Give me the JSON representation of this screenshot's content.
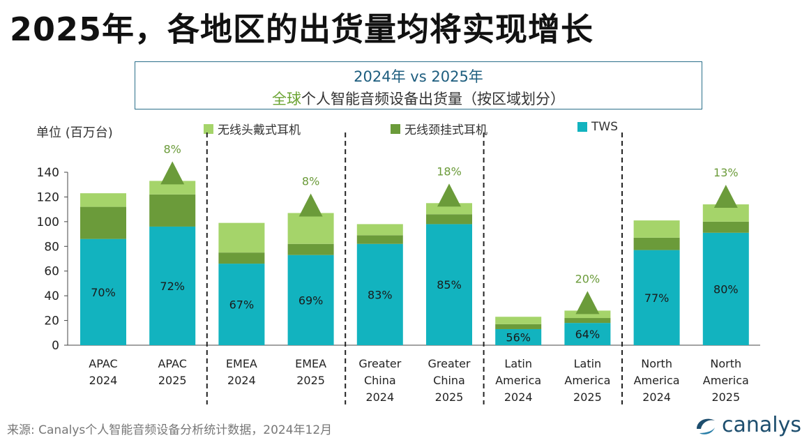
{
  "title": "2025年，各地区的出货量均将实现增长",
  "subtitle": {
    "line1_a": "2024年",
    "line1_b": " vs ",
    "line1_c": "2025年",
    "line2_a": "全球",
    "line2_b": "个人智能音频设备出货量（按区域划分）"
  },
  "colors": {
    "tws": "#12b3bf",
    "neckband": "#6b9b3a",
    "headphones": "#a5d46a",
    "triangle": "#6b9b3a",
    "growth_text": "#6b9b3a"
  },
  "chart_data": {
    "type": "bar",
    "stacked": true,
    "ylabel": "单位 (百万台)",
    "ylim": [
      0,
      140
    ],
    "yticks": [
      0,
      20,
      40,
      60,
      80,
      100,
      120,
      140
    ],
    "legend": [
      "无线头戴式耳机",
      "无线颈挂式耳机",
      "TWS"
    ],
    "categories": [
      [
        "APAC",
        "2024"
      ],
      [
        "APAC",
        "2025"
      ],
      [
        "EMEA",
        "2024"
      ],
      [
        "EMEA",
        "2025"
      ],
      [
        "Greater",
        "China",
        "2024"
      ],
      [
        "Greater",
        "China",
        "2025"
      ],
      [
        "Latin",
        "America",
        "2024"
      ],
      [
        "Latin",
        "America",
        "2025"
      ],
      [
        "North",
        "America",
        "2024"
      ],
      [
        "North",
        "America",
        "2025"
      ]
    ],
    "series": [
      {
        "name": "TWS",
        "values": [
          86,
          96,
          66,
          73,
          82,
          98,
          13,
          18,
          77,
          91
        ]
      },
      {
        "name": "无线颈挂式耳机",
        "values": [
          26,
          26,
          9,
          9,
          7,
          8,
          4,
          4,
          10,
          9
        ]
      },
      {
        "name": "无线头戴式耳机",
        "values": [
          11,
          11,
          24,
          25,
          9,
          9,
          6,
          6,
          14,
          14
        ]
      }
    ],
    "tws_share_labels": [
      "70%",
      "72%",
      "67%",
      "69%",
      "83%",
      "85%",
      "56%",
      "64%",
      "77%",
      "80%"
    ],
    "growth": [
      {
        "index": 1,
        "label": "8%"
      },
      {
        "index": 3,
        "label": "8%"
      },
      {
        "index": 5,
        "label": "18%"
      },
      {
        "index": 7,
        "label": "20%"
      },
      {
        "index": 9,
        "label": "13%"
      }
    ],
    "region_dividers_after": [
      1,
      3,
      5,
      7
    ]
  },
  "source": "来源: Canalys个人智能音频设备分析统计数据，2024年12月",
  "logo": "canalys"
}
